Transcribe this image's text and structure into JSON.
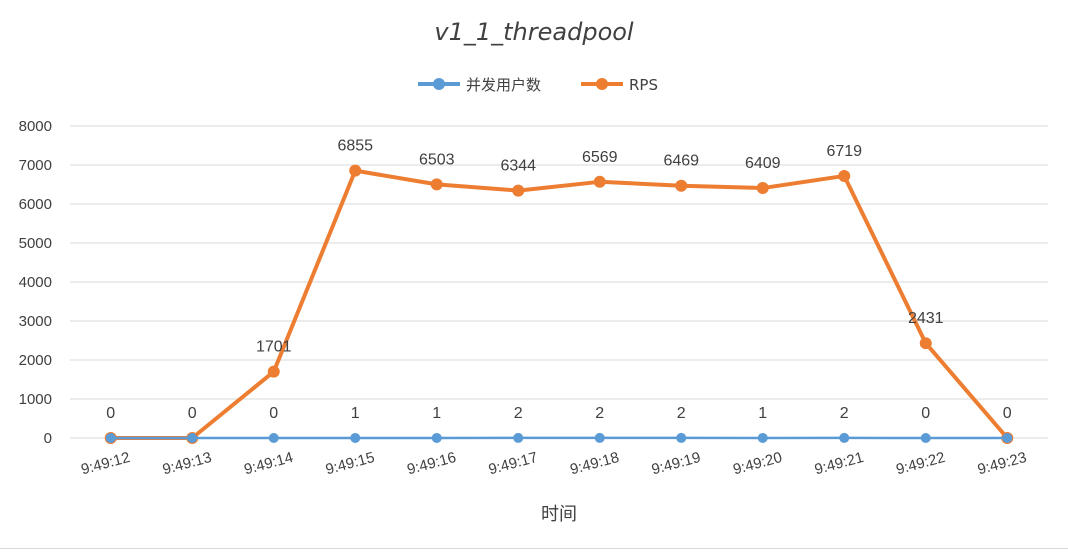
{
  "chart_data": {
    "type": "line",
    "title": "v1_1_threadpool",
    "xlabel": "时间",
    "ylabel": "",
    "ylim": [
      0,
      8000
    ],
    "yticks": [
      0,
      1000,
      2000,
      3000,
      4000,
      5000,
      6000,
      7000,
      8000
    ],
    "grid": true,
    "legend_position": "top",
    "categories": [
      "9:49:12",
      "9:49:13",
      "9:49:14",
      "9:49:15",
      "9:49:16",
      "9:49:17",
      "9:49:18",
      "9:49:19",
      "9:49:20",
      "9:49:21",
      "9:49:22",
      "9:49:23"
    ],
    "series": [
      {
        "name": "并发用户数",
        "color": "#5b9bd5",
        "values": [
          0,
          0,
          0,
          1,
          1,
          2,
          2,
          2,
          1,
          2,
          0,
          0
        ]
      },
      {
        "name": "RPS",
        "color": "#ed7d31",
        "values": [
          0,
          0,
          1701,
          6855,
          6503,
          6344,
          6569,
          6469,
          6409,
          6719,
          2431,
          0
        ]
      }
    ]
  }
}
